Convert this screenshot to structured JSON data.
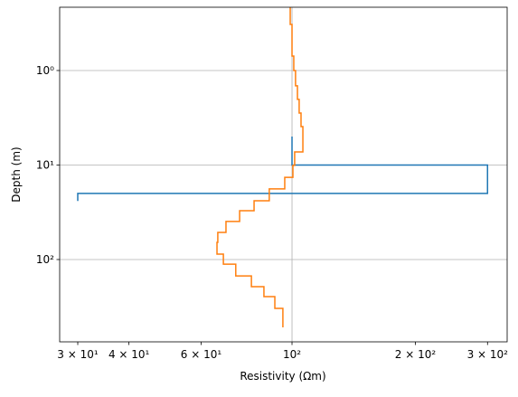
{
  "chart_data": {
    "type": "line",
    "x_label": "Resistivity (Ωm)",
    "y_label": "Depth (m)",
    "x_log": true,
    "y_log": true,
    "y_inverted": true,
    "grid": true,
    "step": true,
    "xlim": [
      27.1,
      335
    ],
    "ylim": [
      0.214,
      743
    ],
    "xticks": [
      {
        "value": 30,
        "label": "3 × 10¹"
      },
      {
        "value": 40,
        "label": "4 × 10¹"
      },
      {
        "value": 60,
        "label": "6 × 10¹"
      },
      {
        "value": 100,
        "label": "10²"
      },
      {
        "value": 200,
        "label": "2 × 10²"
      },
      {
        "value": 300,
        "label": "3 × 10²"
      }
    ],
    "yticks": [
      {
        "value": 1,
        "label": "10⁰"
      },
      {
        "value": 10,
        "label": "10¹"
      },
      {
        "value": 100,
        "label": "10²"
      }
    ],
    "series": [
      {
        "color": "#1f77b4",
        "x": [
          100,
          100,
          300,
          300,
          30,
          30
        ],
        "y": [
          5,
          10,
          10,
          20,
          20,
          24
        ]
      },
      {
        "color": "#ff7f0e",
        "x": [
          99,
          99,
          100,
          100,
          101,
          101,
          102,
          102,
          103.1,
          103.1,
          104.1,
          104.1,
          105.2,
          105.2,
          106.3,
          106.3,
          101.5,
          101.5,
          100.5,
          100.5,
          96,
          96,
          88,
          88,
          80.8,
          80.8,
          74.5,
          74.5,
          69,
          69,
          65.9,
          65.9,
          65.6,
          65.6,
          68,
          68,
          72.9,
          72.9,
          79.6,
          79.6,
          85.4,
          85.4,
          90.8,
          90.8,
          95,
          95
        ],
        "y": [
          0.214,
          0.325,
          0.325,
          0.703,
          0.703,
          1.0,
          1.0,
          1.45,
          1.45,
          2.02,
          2.02,
          2.82,
          2.82,
          3.92,
          3.92,
          7.26,
          7.26,
          10.1,
          10.1,
          13.5,
          13.5,
          17.9,
          17.9,
          23.9,
          23.9,
          30.4,
          30.4,
          39.6,
          39.6,
          51.6,
          51.6,
          65.8,
          65.8,
          87.6,
          87.6,
          112,
          112,
          149,
          149,
          194,
          194,
          247,
          247,
          329,
          329,
          522
        ]
      }
    ]
  }
}
